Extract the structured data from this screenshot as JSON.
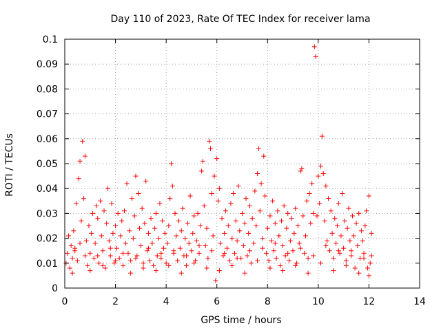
{
  "chart_data": {
    "type": "scatter",
    "title": "Day 110 of 2023, Rate Of TEC Index for receiver lama",
    "xlabel": "GPS time / hours",
    "ylabel": "ROTI / TECUs",
    "xlim": [
      0,
      14
    ],
    "ylim": [
      0,
      0.1
    ],
    "xticks": [
      "0",
      "2",
      "4",
      "6",
      "8",
      "10",
      "12",
      "14"
    ],
    "yticks": [
      "0",
      "0.01",
      "0.02",
      "0.03",
      "0.04",
      "0.05",
      "0.06",
      "0.07",
      "0.08",
      "0.09",
      "0.1"
    ],
    "grid": true,
    "marker": "plus",
    "color": "#ff0000",
    "points": [
      [
        0.05,
        0.01
      ],
      [
        0.1,
        0.014
      ],
      [
        0.15,
        0.021
      ],
      [
        0.2,
        0.008
      ],
      [
        0.25,
        0.017
      ],
      [
        0.3,
        0.012
      ],
      [
        0.35,
        0.023
      ],
      [
        0.4,
        0.016
      ],
      [
        0.45,
        0.034
      ],
      [
        0.5,
        0.011
      ],
      [
        0.55,
        0.044
      ],
      [
        0.6,
        0.051
      ],
      [
        0.65,
        0.027
      ],
      [
        0.7,
        0.059
      ],
      [
        0.75,
        0.036
      ],
      [
        0.8,
        0.053
      ],
      [
        0.85,
        0.019
      ],
      [
        0.9,
        0.009
      ],
      [
        0.95,
        0.025
      ],
      [
        1.0,
        0.014
      ],
      [
        1.05,
        0.022
      ],
      [
        1.1,
        0.03
      ],
      [
        1.15,
        0.012
      ],
      [
        1.2,
        0.018
      ],
      [
        1.25,
        0.033
      ],
      [
        1.3,
        0.028
      ],
      [
        1.35,
        0.01
      ],
      [
        1.4,
        0.035
      ],
      [
        1.45,
        0.021
      ],
      [
        1.5,
        0.015
      ],
      [
        1.55,
        0.031
      ],
      [
        1.6,
        0.008
      ],
      [
        1.65,
        0.026
      ],
      [
        1.7,
        0.04
      ],
      [
        1.75,
        0.019
      ],
      [
        1.8,
        0.013
      ],
      [
        1.85,
        0.034
      ],
      [
        1.9,
        0.022
      ],
      [
        1.95,
        0.01
      ],
      [
        2.0,
        0.025
      ],
      [
        2.05,
        0.016
      ],
      [
        2.1,
        0.03
      ],
      [
        2.15,
        0.012
      ],
      [
        2.2,
        0.021
      ],
      [
        2.25,
        0.027
      ],
      [
        2.3,
        0.009
      ],
      [
        2.35,
        0.031
      ],
      [
        2.4,
        0.018
      ],
      [
        2.45,
        0.042
      ],
      [
        2.5,
        0.014
      ],
      [
        2.55,
        0.023
      ],
      [
        2.6,
        0.011
      ],
      [
        2.65,
        0.036
      ],
      [
        2.7,
        0.02
      ],
      [
        2.75,
        0.029
      ],
      [
        2.8,
        0.045
      ],
      [
        2.85,
        0.013
      ],
      [
        2.9,
        0.038
      ],
      [
        2.95,
        0.024
      ],
      [
        3.0,
        0.017
      ],
      [
        3.05,
        0.032
      ],
      [
        3.1,
        0.01
      ],
      [
        3.15,
        0.026
      ],
      [
        3.2,
        0.043
      ],
      [
        3.25,
        0.015
      ],
      [
        3.3,
        0.022
      ],
      [
        3.35,
        0.011
      ],
      [
        3.4,
        0.028
      ],
      [
        3.45,
        0.018
      ],
      [
        3.5,
        0.009
      ],
      [
        3.55,
        0.024
      ],
      [
        3.6,
        0.03
      ],
      [
        3.65,
        0.013
      ],
      [
        3.7,
        0.02
      ],
      [
        3.75,
        0.034
      ],
      [
        3.8,
        0.012
      ],
      [
        3.85,
        0.027
      ],
      [
        3.9,
        0.016
      ],
      [
        3.95,
        0.022
      ],
      [
        4.0,
        0.01
      ],
      [
        4.05,
        0.018
      ],
      [
        4.1,
        0.025
      ],
      [
        4.15,
        0.036
      ],
      [
        4.2,
        0.05
      ],
      [
        4.25,
        0.041
      ],
      [
        4.3,
        0.014
      ],
      [
        4.35,
        0.03
      ],
      [
        4.4,
        0.021
      ],
      [
        4.45,
        0.011
      ],
      [
        4.5,
        0.027
      ],
      [
        4.55,
        0.016
      ],
      [
        4.6,
        0.023
      ],
      [
        4.65,
        0.032
      ],
      [
        4.7,
        0.013
      ],
      [
        4.75,
        0.02
      ],
      [
        4.8,
        0.009
      ],
      [
        4.85,
        0.026
      ],
      [
        4.9,
        0.018
      ],
      [
        4.95,
        0.037
      ],
      [
        5.0,
        0.015
      ],
      [
        5.05,
        0.022
      ],
      [
        5.1,
        0.029
      ],
      [
        5.15,
        0.011
      ],
      [
        5.2,
        0.019
      ],
      [
        5.25,
        0.03
      ],
      [
        5.3,
        0.014
      ],
      [
        5.35,
        0.025
      ],
      [
        5.4,
        0.047
      ],
      [
        5.45,
        0.051
      ],
      [
        5.5,
        0.033
      ],
      [
        5.55,
        0.017
      ],
      [
        5.6,
        0.024
      ],
      [
        5.65,
        0.012
      ],
      [
        5.7,
        0.059
      ],
      [
        5.75,
        0.056
      ],
      [
        5.8,
        0.038
      ],
      [
        5.85,
        0.021
      ],
      [
        5.9,
        0.045
      ],
      [
        5.95,
        0.003
      ],
      [
        6.0,
        0.052
      ],
      [
        6.05,
        0.035
      ],
      [
        6.1,
        0.04
      ],
      [
        6.15,
        0.018
      ],
      [
        6.2,
        0.028
      ],
      [
        6.25,
        0.013
      ],
      [
        6.3,
        0.022
      ],
      [
        6.35,
        0.031
      ],
      [
        6.4,
        0.016
      ],
      [
        6.45,
        0.025
      ],
      [
        6.5,
        0.011
      ],
      [
        6.55,
        0.034
      ],
      [
        6.6,
        0.02
      ],
      [
        6.65,
        0.038
      ],
      [
        6.7,
        0.014
      ],
      [
        6.75,
        0.027
      ],
      [
        6.8,
        0.019
      ],
      [
        6.85,
        0.041
      ],
      [
        6.9,
        0.023
      ],
      [
        6.95,
        0.012
      ],
      [
        7.0,
        0.03
      ],
      [
        7.05,
        0.017
      ],
      [
        7.1,
        0.026
      ],
      [
        7.15,
        0.036
      ],
      [
        7.2,
        0.013
      ],
      [
        7.25,
        0.022
      ],
      [
        7.3,
        0.033
      ],
      [
        7.35,
        0.01
      ],
      [
        7.4,
        0.028
      ],
      [
        7.45,
        0.018
      ],
      [
        7.5,
        0.039
      ],
      [
        7.55,
        0.025
      ],
      [
        7.6,
        0.046
      ],
      [
        7.65,
        0.056
      ],
      [
        7.7,
        0.031
      ],
      [
        7.75,
        0.042
      ],
      [
        7.8,
        0.02
      ],
      [
        7.85,
        0.053
      ],
      [
        7.9,
        0.037
      ],
      [
        7.95,
        0.014
      ],
      [
        8.0,
        0.024
      ],
      [
        8.05,
        0.011
      ],
      [
        8.1,
        0.029
      ],
      [
        8.15,
        0.019
      ],
      [
        8.2,
        0.035
      ],
      [
        8.25,
        0.015
      ],
      [
        8.3,
        0.026
      ],
      [
        8.35,
        0.012
      ],
      [
        8.4,
        0.031
      ],
      [
        8.45,
        0.021
      ],
      [
        8.5,
        0.009
      ],
      [
        8.55,
        0.027
      ],
      [
        8.6,
        0.017
      ],
      [
        8.65,
        0.033
      ],
      [
        8.7,
        0.013
      ],
      [
        8.75,
        0.024
      ],
      [
        8.8,
        0.03
      ],
      [
        8.85,
        0.011
      ],
      [
        8.9,
        0.019
      ],
      [
        8.95,
        0.028
      ],
      [
        9.0,
        0.015
      ],
      [
        9.05,
        0.022
      ],
      [
        9.1,
        0.032
      ],
      [
        9.15,
        0.01
      ],
      [
        9.2,
        0.025
      ],
      [
        9.25,
        0.018
      ],
      [
        9.3,
        0.047
      ],
      [
        9.35,
        0.048
      ],
      [
        9.4,
        0.029
      ],
      [
        9.45,
        0.014
      ],
      [
        9.5,
        0.021
      ],
      [
        9.55,
        0.035
      ],
      [
        9.6,
        0.012
      ],
      [
        9.65,
        0.038
      ],
      [
        9.7,
        0.026
      ],
      [
        9.75,
        0.042
      ],
      [
        9.8,
        0.03
      ],
      [
        9.85,
        0.097
      ],
      [
        9.9,
        0.093
      ],
      [
        9.95,
        0.029
      ],
      [
        10.0,
        0.045
      ],
      [
        10.05,
        0.034
      ],
      [
        10.1,
        0.049
      ],
      [
        10.15,
        0.061
      ],
      [
        10.2,
        0.046
      ],
      [
        10.25,
        0.027
      ],
      [
        10.3,
        0.041
      ],
      [
        10.35,
        0.019
      ],
      [
        10.4,
        0.036
      ],
      [
        10.45,
        0.015
      ],
      [
        10.5,
        0.031
      ],
      [
        10.55,
        0.022
      ],
      [
        10.6,
        0.012
      ],
      [
        10.65,
        0.028
      ],
      [
        10.7,
        0.018
      ],
      [
        10.75,
        0.025
      ],
      [
        10.8,
        0.034
      ],
      [
        10.85,
        0.014
      ],
      [
        10.9,
        0.021
      ],
      [
        10.95,
        0.038
      ],
      [
        11.0,
        0.016
      ],
      [
        11.05,
        0.027
      ],
      [
        11.1,
        0.011
      ],
      [
        11.15,
        0.024
      ],
      [
        11.2,
        0.032
      ],
      [
        11.25,
        0.019
      ],
      [
        11.3,
        0.013
      ],
      [
        11.35,
        0.029
      ],
      [
        11.4,
        0.021
      ],
      [
        11.45,
        0.008
      ],
      [
        11.5,
        0.026
      ],
      [
        11.55,
        0.017
      ],
      [
        11.6,
        0.03
      ],
      [
        11.65,
        0.012
      ],
      [
        11.7,
        0.023
      ],
      [
        11.75,
        0.019
      ],
      [
        11.8,
        0.014
      ],
      [
        11.85,
        0.025
      ],
      [
        11.9,
        0.031
      ],
      [
        11.95,
        0.008
      ],
      [
        12.0,
        0.037
      ],
      [
        12.05,
        0.01
      ],
      [
        12.1,
        0.022
      ],
      [
        0.3,
        0.006
      ],
      [
        0.6,
        0.018
      ],
      [
        1.0,
        0.007
      ],
      [
        1.5,
        0.009
      ],
      [
        2.0,
        0.011
      ],
      [
        2.6,
        0.006
      ],
      [
        3.1,
        0.008
      ],
      [
        3.6,
        0.007
      ],
      [
        4.1,
        0.009
      ],
      [
        4.6,
        0.006
      ],
      [
        5.1,
        0.01
      ],
      [
        5.6,
        0.008
      ],
      [
        6.1,
        0.007
      ],
      [
        6.6,
        0.009
      ],
      [
        7.1,
        0.006
      ],
      [
        7.6,
        0.011
      ],
      [
        8.1,
        0.008
      ],
      [
        8.6,
        0.007
      ],
      [
        9.1,
        0.009
      ],
      [
        9.6,
        0.006
      ],
      [
        10.1,
        0.01
      ],
      [
        10.6,
        0.007
      ],
      [
        11.1,
        0.009
      ],
      [
        11.6,
        0.006
      ],
      [
        12.0,
        0.005
      ],
      [
        0.8,
        0.013
      ],
      [
        1.8,
        0.016
      ],
      [
        2.8,
        0.012
      ],
      [
        3.8,
        0.014
      ],
      [
        4.8,
        0.013
      ],
      [
        5.8,
        0.015
      ],
      [
        6.8,
        0.012
      ],
      [
        7.8,
        0.016
      ],
      [
        8.8,
        0.014
      ],
      [
        9.8,
        0.013
      ],
      [
        10.8,
        0.015
      ],
      [
        11.8,
        0.012
      ],
      [
        0.4,
        0.015
      ],
      [
        1.3,
        0.013
      ],
      [
        2.3,
        0.014
      ],
      [
        3.3,
        0.016
      ],
      [
        4.3,
        0.015
      ],
      [
        5.3,
        0.017
      ],
      [
        6.3,
        0.014
      ],
      [
        7.3,
        0.015
      ],
      [
        8.3,
        0.018
      ],
      [
        9.3,
        0.016
      ],
      [
        10.3,
        0.017
      ],
      [
        11.3,
        0.015
      ],
      [
        12.1,
        0.013
      ]
    ]
  }
}
